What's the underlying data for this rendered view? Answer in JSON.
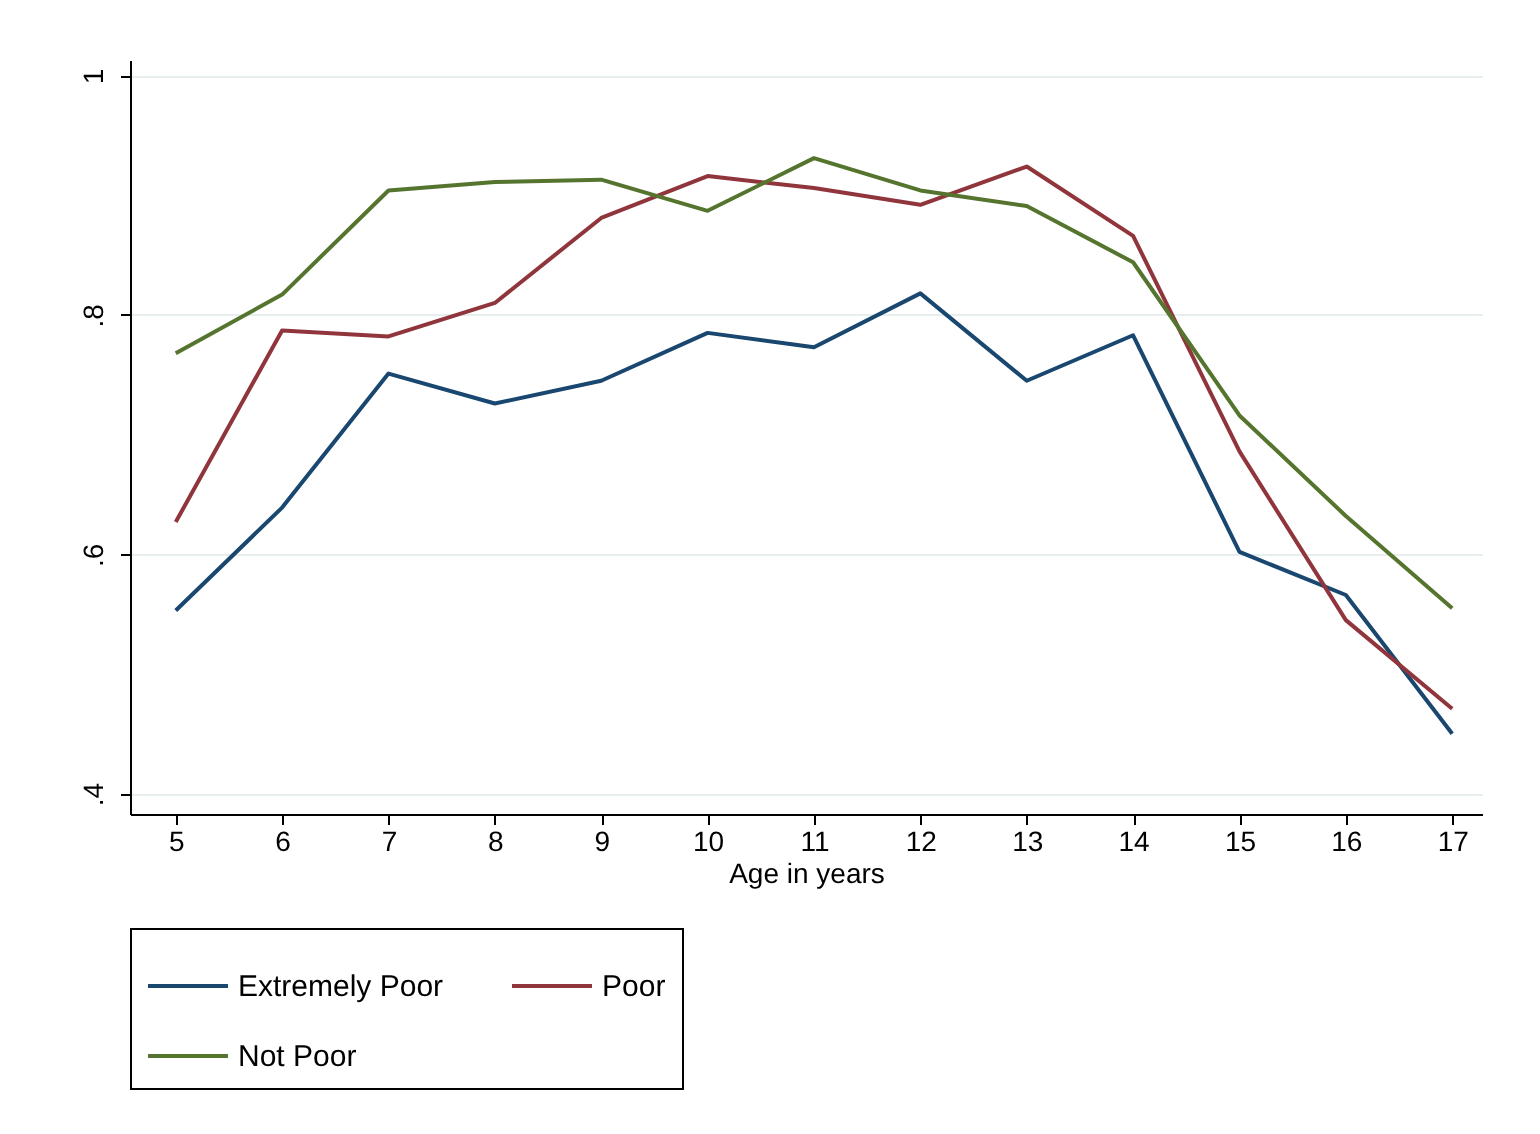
{
  "chart_data": {
    "type": "line",
    "xlabel": "Age in years",
    "x": [
      5,
      6,
      7,
      8,
      9,
      10,
      11,
      12,
      13,
      14,
      15,
      16,
      17
    ],
    "xlim": [
      4.57,
      17.28
    ],
    "xticks": [
      5,
      6,
      7,
      8,
      9,
      10,
      11,
      12,
      13,
      14,
      15,
      16,
      17
    ],
    "ylim": [
      0.383,
      1.013
    ],
    "yticks": [
      {
        "value": 0.4,
        "label": ".4"
      },
      {
        "value": 0.6,
        "label": ".6"
      },
      {
        "value": 0.8,
        "label": ".8"
      },
      {
        "value": 1,
        "label": "1"
      }
    ],
    "grid": "y",
    "legend": "bottom",
    "marker": "none",
    "line_style": "solid",
    "series": [
      {
        "name": "Extremely Poor",
        "color": "#1a476f",
        "values": [
          0.553,
          0.639,
          0.751,
          0.726,
          0.745,
          0.785,
          0.773,
          0.818,
          0.745,
          0.783,
          0.602,
          0.566,
          0.45
        ]
      },
      {
        "name": "Poor",
        "color": "#90353b",
        "values": [
          0.627,
          0.787,
          0.782,
          0.81,
          0.881,
          0.916,
          0.906,
          0.892,
          0.924,
          0.866,
          0.686,
          0.545,
          0.471
        ]
      },
      {
        "name": "Not Poor",
        "color": "#55752f",
        "values": [
          0.768,
          0.817,
          0.904,
          0.911,
          0.913,
          0.887,
          0.931,
          0.904,
          0.891,
          0.844,
          0.716,
          0.632,
          0.555
        ]
      }
    ]
  }
}
